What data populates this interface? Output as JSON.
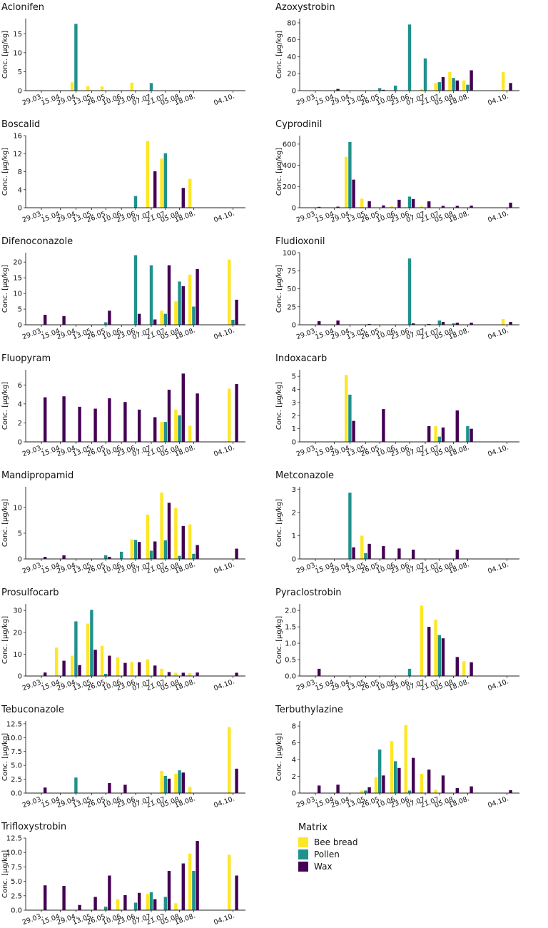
{
  "legend": {
    "title": "Matrix",
    "entries": [
      "Bee bread",
      "Pollen",
      "Wax"
    ]
  },
  "colors": {
    "Bee bread": "#fde725",
    "Pollen": "#21918c",
    "Wax": "#440154"
  },
  "chart_data": [
    {
      "type": "bar",
      "title": "Aclonifen",
      "ylabel": "Conc. [µg/kg]",
      "categories": [
        "29.03.",
        "15.04.",
        "29.04.",
        "13.05.",
        "26.05.",
        "10.06.",
        "23.06.",
        "07.07.",
        "21.07.",
        "05.08.",
        "18.08.",
        "04.10."
      ],
      "ylim": [
        0,
        19
      ],
      "yticks": [
        0,
        5,
        10,
        15
      ],
      "series": [
        {
          "name": "Bee bread",
          "values": [
            0,
            0,
            2.2,
            1.2,
            1.1,
            0,
            2.1,
            0,
            0,
            0,
            0,
            0
          ]
        },
        {
          "name": "Pollen",
          "values": [
            0,
            0,
            17.6,
            0,
            0,
            0,
            0,
            2.0,
            0,
            0,
            0,
            0
          ]
        },
        {
          "name": "Wax",
          "values": [
            0,
            0,
            0,
            0,
            0,
            0,
            0,
            0,
            0,
            0,
            0,
            0
          ]
        }
      ]
    },
    {
      "type": "bar",
      "title": "Azoxystrobin",
      "ylabel": "Conc. [µg/kg]",
      "categories": [
        "29.03.",
        "15.04.",
        "29.04.",
        "13.05.",
        "26.05.",
        "10.06.",
        "23.06.",
        "07.07.",
        "21.07.",
        "05.08.",
        "18.08.",
        "04.10."
      ],
      "ylim": [
        0,
        85
      ],
      "yticks": [
        0,
        20,
        40,
        60,
        80
      ],
      "series": [
        {
          "name": "Bee bread",
          "values": [
            0,
            0,
            0,
            0,
            0,
            0,
            0,
            2,
            9,
            22,
            12,
            22
          ]
        },
        {
          "name": "Pollen",
          "values": [
            0,
            0,
            0,
            0,
            3,
            6,
            78,
            38,
            10,
            15,
            7,
            0
          ]
        },
        {
          "name": "Wax",
          "values": [
            0,
            2,
            0,
            0,
            1,
            0,
            0,
            0,
            16,
            12,
            24,
            9
          ]
        }
      ]
    },
    {
      "type": "bar",
      "title": "Boscalid",
      "ylabel": "Conc. [µg/kg]",
      "categories": [
        "29.03.",
        "15.04.",
        "29.04.",
        "13.05.",
        "26.05.",
        "10.06.",
        "23.06.",
        "07.07.",
        "21.07.",
        "05.08.",
        "18.08.",
        "04.10."
      ],
      "ylim": [
        0,
        16
      ],
      "yticks": [
        0,
        4,
        8,
        12,
        16
      ],
      "series": [
        {
          "name": "Bee bread",
          "values": [
            0,
            0,
            0,
            0,
            0,
            0,
            0,
            14.8,
            10.9,
            0,
            6.4,
            0
          ]
        },
        {
          "name": "Pollen",
          "values": [
            0,
            0,
            0,
            0,
            0,
            0,
            2.6,
            0,
            12.1,
            0,
            0,
            0
          ]
        },
        {
          "name": "Wax",
          "values": [
            0,
            0,
            0,
            0,
            0,
            0,
            0,
            8.1,
            0,
            4.4,
            0,
            0
          ]
        }
      ]
    },
    {
      "type": "bar",
      "title": "Cyprodinil",
      "ylabel": "Conc. [µg/kg]",
      "categories": [
        "29.03.",
        "15.04.",
        "29.04.",
        "13.05.",
        "26.05.",
        "10.06.",
        "23.06.",
        "07.07.",
        "21.07.",
        "05.08.",
        "18.08.",
        "04.10."
      ],
      "ylim": [
        0,
        680
      ],
      "yticks": [
        0,
        200,
        400,
        600
      ],
      "series": [
        {
          "name": "Bee bread",
          "values": [
            0,
            0,
            480,
            85,
            0,
            12,
            0,
            12,
            0,
            0,
            0,
            0
          ]
        },
        {
          "name": "Pollen",
          "values": [
            0,
            0,
            620,
            0,
            0,
            0,
            105,
            0,
            0,
            0,
            0,
            0
          ]
        },
        {
          "name": "Wax",
          "values": [
            8,
            10,
            265,
            62,
            22,
            75,
            82,
            60,
            18,
            18,
            20,
            48
          ]
        }
      ]
    },
    {
      "type": "bar",
      "title": "Difenoconazole",
      "ylabel": "Conc. [µg/kg]",
      "categories": [
        "29.03.",
        "15.04.",
        "29.04.",
        "13.05.",
        "26.05.",
        "10.06.",
        "23.06.",
        "07.07.",
        "21.07.",
        "05.08.",
        "18.08.",
        "04.10."
      ],
      "ylim": [
        0,
        23
      ],
      "yticks": [
        0,
        5,
        10,
        15,
        20
      ],
      "series": [
        {
          "name": "Bee bread",
          "values": [
            0,
            0,
            0,
            0,
            0,
            0,
            0,
            0,
            4.5,
            7.5,
            16,
            20.8
          ]
        },
        {
          "name": "Pollen",
          "values": [
            0,
            0,
            0,
            0,
            0.8,
            0,
            22.2,
            19,
            3.5,
            13.8,
            5.8,
            1.6
          ]
        },
        {
          "name": "Wax",
          "values": [
            3.2,
            2.8,
            0,
            0,
            4.5,
            0,
            3.5,
            1.7,
            19,
            12.3,
            17.8,
            8
          ]
        }
      ]
    },
    {
      "type": "bar",
      "title": "Fludioxonil",
      "ylabel": "Conc. [µg/kg]",
      "categories": [
        "29.03.",
        "15.04.",
        "29.04.",
        "13.05.",
        "26.05.",
        "10.06.",
        "23.06.",
        "07.07.",
        "21.07.",
        "05.08.",
        "18.08.",
        "04.10."
      ],
      "ylim": [
        0,
        100
      ],
      "yticks": [
        0,
        25,
        50,
        75,
        100
      ],
      "series": [
        {
          "name": "Bee bread",
          "values": [
            0,
            0,
            0,
            0,
            0,
            0,
            0,
            0,
            0,
            0,
            0,
            8
          ]
        },
        {
          "name": "Pollen",
          "values": [
            0,
            0,
            0,
            0,
            0,
            0,
            92,
            0,
            6,
            2,
            0,
            0
          ]
        },
        {
          "name": "Wax",
          "values": [
            5,
            6,
            0,
            1,
            0,
            0,
            2,
            1,
            4,
            3,
            3,
            4
          ]
        }
      ]
    },
    {
      "type": "bar",
      "title": "Fluopyram",
      "ylabel": "Conc. [µg/kg]",
      "categories": [
        "29.03.",
        "15.04.",
        "29.04.",
        "13.05.",
        "26.05.",
        "10.06.",
        "23.06.",
        "07.07.",
        "21.07.",
        "05.08.",
        "18.08.",
        "04.10."
      ],
      "ylim": [
        0,
        7.6
      ],
      "yticks": [
        0,
        2,
        4,
        6
      ],
      "series": [
        {
          "name": "Bee bread",
          "values": [
            0,
            0,
            0,
            0,
            0,
            0,
            0,
            0,
            2.1,
            3.4,
            1.7,
            5.6
          ]
        },
        {
          "name": "Pollen",
          "values": [
            0,
            0,
            0,
            0,
            0,
            0,
            0,
            0,
            2.1,
            2.8,
            0,
            0
          ]
        },
        {
          "name": "Wax",
          "values": [
            4.7,
            4.8,
            3.7,
            3.5,
            4.6,
            4.2,
            3.4,
            2.6,
            5.5,
            7.2,
            5.1,
            6.1
          ]
        }
      ]
    },
    {
      "type": "bar",
      "title": "Indoxacarb",
      "ylabel": "Conc. [µg/kg]",
      "categories": [
        "29.03.",
        "15.04.",
        "29.04.",
        "13.05.",
        "26.05.",
        "10.06.",
        "23.06.",
        "07.07.",
        "21.07.",
        "05.08.",
        "18.08.",
        "04.10."
      ],
      "ylim": [
        0,
        5.5
      ],
      "yticks": [
        0,
        1,
        2,
        3,
        4,
        5
      ],
      "series": [
        {
          "name": "Bee bread",
          "values": [
            0,
            0,
            5.1,
            0,
            0,
            0,
            0,
            0,
            1.2,
            0,
            0,
            0
          ]
        },
        {
          "name": "Pollen",
          "values": [
            0,
            0,
            3.6,
            0,
            0,
            0,
            0,
            0,
            0.4,
            0,
            1.2,
            0
          ]
        },
        {
          "name": "Wax",
          "values": [
            0,
            0,
            1.6,
            0,
            2.5,
            0,
            0,
            1.2,
            1.1,
            2.4,
            1.0,
            0
          ]
        }
      ]
    },
    {
      "type": "bar",
      "title": "Mandipropamid",
      "ylabel": "Conc. [µg/kg]",
      "categories": [
        "29.03.",
        "15.04.",
        "29.04.",
        "13.05.",
        "26.05.",
        "10.06.",
        "23.06.",
        "07.07.",
        "21.07.",
        "05.08.",
        "18.08.",
        "04.10."
      ],
      "ylim": [
        0,
        14
      ],
      "yticks": [
        0,
        5,
        10
      ],
      "series": [
        {
          "name": "Bee bread",
          "values": [
            0,
            0,
            0,
            0,
            0,
            0,
            3.8,
            8.6,
            12.9,
            9.9,
            6.7,
            0
          ]
        },
        {
          "name": "Pollen",
          "values": [
            0,
            0,
            0,
            0,
            0.7,
            1.4,
            3.7,
            1.6,
            3.6,
            0.6,
            1.0,
            0
          ]
        },
        {
          "name": "Wax",
          "values": [
            0.4,
            0.7,
            0,
            0,
            0.4,
            0,
            3.3,
            3.4,
            10.9,
            6.4,
            2.7,
            2.0
          ]
        }
      ]
    },
    {
      "type": "bar",
      "title": "Metconazole",
      "ylabel": "Conc. [µg/kg]",
      "categories": [
        "29.03.",
        "15.04.",
        "29.04.",
        "13.05.",
        "26.05.",
        "10.06.",
        "23.06.",
        "07.07.",
        "21.07.",
        "05.08.",
        "18.08.",
        "04.10."
      ],
      "ylim": [
        0,
        3.1
      ],
      "yticks": [
        0,
        1,
        2,
        3
      ],
      "series": [
        {
          "name": "Bee bread",
          "values": [
            0,
            0,
            0,
            1.0,
            0,
            0,
            0,
            0,
            0,
            0,
            0,
            0
          ]
        },
        {
          "name": "Pollen",
          "values": [
            0,
            0,
            2.85,
            0.25,
            0,
            0,
            0,
            0,
            0,
            0,
            0,
            0
          ]
        },
        {
          "name": "Wax",
          "values": [
            0,
            0,
            0.5,
            0.65,
            0.55,
            0.45,
            0.4,
            0,
            0,
            0.4,
            0,
            0
          ]
        }
      ]
    },
    {
      "type": "bar",
      "title": "Prosulfocarb",
      "ylabel": "Conc. [µg/kg]",
      "categories": [
        "29.03.",
        "15.04.",
        "29.04.",
        "13.05.",
        "26.05.",
        "10.06.",
        "23.06.",
        "07.07.",
        "21.07.",
        "05.08.",
        "18.08.",
        "04.10."
      ],
      "ylim": [
        0,
        33
      ],
      "yticks": [
        0,
        10,
        20,
        30
      ],
      "series": [
        {
          "name": "Bee bread",
          "values": [
            0,
            13,
            9.3,
            24,
            13.8,
            8.6,
            6.4,
            7.6,
            3.3,
            1.5,
            1.3,
            0
          ]
        },
        {
          "name": "Pollen",
          "values": [
            0,
            0,
            25,
            30.3,
            1,
            0,
            0,
            0,
            0,
            0,
            0,
            0
          ]
        },
        {
          "name": "Wax",
          "values": [
            1.6,
            7,
            5,
            12,
            9.3,
            6,
            6.3,
            4.8,
            1.8,
            1.5,
            1.6,
            1.5
          ]
        }
      ]
    },
    {
      "type": "bar",
      "title": "Pyraclostrobin",
      "ylabel": "Conc. [µg/kg]",
      "categories": [
        "29.03.",
        "15.04.",
        "29.04.",
        "13.05.",
        "26.05.",
        "10.06.",
        "23.06.",
        "07.07.",
        "21.07.",
        "05.08.",
        "18.08.",
        "04.10."
      ],
      "ylim": [
        0,
        2.2
      ],
      "yticks": [
        0.0,
        0.5,
        1.0,
        1.5,
        2.0
      ],
      "series": [
        {
          "name": "Bee bread",
          "values": [
            0,
            0,
            0,
            0,
            0,
            0,
            0,
            2.15,
            1.72,
            0,
            0.45,
            0
          ]
        },
        {
          "name": "Pollen",
          "values": [
            0,
            0,
            0,
            0,
            0,
            0,
            0.22,
            0,
            1.25,
            0,
            0,
            0
          ]
        },
        {
          "name": "Wax",
          "values": [
            0.22,
            0,
            0,
            0,
            0,
            0,
            0,
            1.5,
            1.15,
            0.58,
            0.42,
            0
          ]
        }
      ]
    },
    {
      "type": "bar",
      "title": "Tebuconazole",
      "ylabel": "Conc. [µg/kg]",
      "categories": [
        "29.03.",
        "15.04.",
        "29.04.",
        "13.05.",
        "26.05.",
        "10.06.",
        "23.06.",
        "07.07.",
        "21.07.",
        "05.08.",
        "18.08.",
        "04.10."
      ],
      "ylim": [
        0,
        13
      ],
      "yticks": [
        0.0,
        2.5,
        5.0,
        7.5,
        10.0,
        12.5
      ],
      "series": [
        {
          "name": "Bee bread",
          "values": [
            0,
            0,
            0,
            0,
            0,
            0,
            0,
            0,
            4.0,
            3.5,
            1.1,
            11.9
          ]
        },
        {
          "name": "Pollen",
          "values": [
            0,
            0,
            2.8,
            0,
            0,
            0,
            0,
            0,
            3.1,
            4.1,
            0,
            0
          ]
        },
        {
          "name": "Wax",
          "values": [
            1.0,
            0,
            0,
            0,
            1.8,
            1.5,
            0,
            0,
            2.6,
            3.7,
            0,
            4.4
          ]
        }
      ]
    },
    {
      "type": "bar",
      "title": "Terbuthylazine",
      "ylabel": "Conc. [µg/kg]",
      "categories": [
        "29.03.",
        "15.04.",
        "29.04.",
        "13.05.",
        "26.05.",
        "10.06.",
        "23.06.",
        "07.07.",
        "21.07.",
        "05.08.",
        "18.08.",
        "04.10."
      ],
      "ylim": [
        0,
        8.6
      ],
      "yticks": [
        0,
        2,
        4,
        6,
        8
      ],
      "series": [
        {
          "name": "Bee bread",
          "values": [
            0,
            0,
            0,
            0.3,
            1.9,
            6.2,
            8.1,
            2.3,
            0.4,
            0,
            0,
            0
          ]
        },
        {
          "name": "Pollen",
          "values": [
            0,
            0,
            0,
            0.3,
            5.2,
            3.8,
            0.3,
            0,
            0,
            0,
            0,
            0
          ]
        },
        {
          "name": "Wax",
          "values": [
            0.9,
            1.0,
            0,
            0.7,
            2.1,
            3.0,
            4.2,
            2.8,
            2.1,
            0.6,
            0.8,
            0.35
          ]
        }
      ]
    },
    {
      "type": "bar",
      "title": "Trifloxystrobin",
      "ylabel": "Conc. [µg/kg]",
      "categories": [
        "29.03.",
        "15.04.",
        "29.04.",
        "13.05.",
        "26.05.",
        "10.06.",
        "23.06.",
        "07.07.",
        "21.07.",
        "05.08.",
        "18.08.",
        "04.10."
      ],
      "ylim": [
        0,
        12.5
      ],
      "yticks": [
        0.0,
        2.5,
        5.0,
        7.5,
        10.0,
        12.5
      ],
      "series": [
        {
          "name": "Bee bread",
          "values": [
            0,
            0,
            0,
            0,
            0,
            1.9,
            0,
            2.8,
            0,
            1.2,
            9.8,
            9.6
          ]
        },
        {
          "name": "Pollen",
          "values": [
            0,
            0,
            0,
            0,
            0.6,
            0,
            1.3,
            3.1,
            2.3,
            0,
            6.8,
            0
          ]
        },
        {
          "name": "Wax",
          "values": [
            4.3,
            4.2,
            0.9,
            2.3,
            6.0,
            2.6,
            3.0,
            1.9,
            6.8,
            8.1,
            12.0,
            6.0
          ]
        }
      ]
    }
  ]
}
